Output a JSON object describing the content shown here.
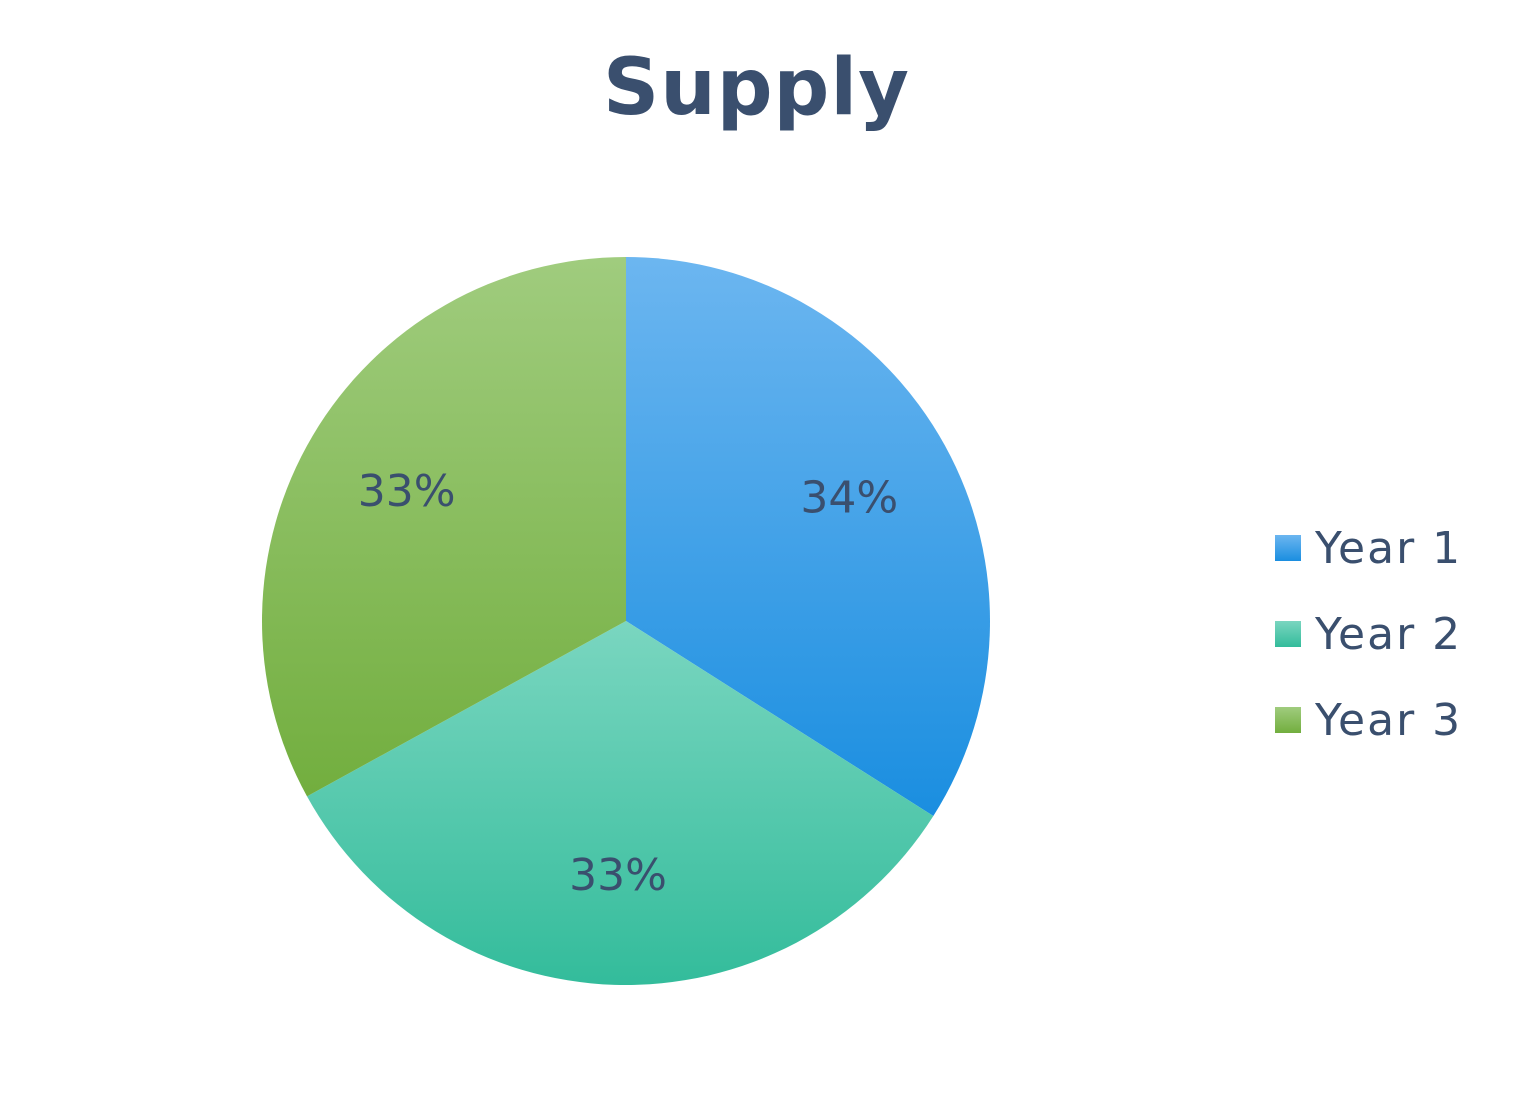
{
  "chart_data": {
    "type": "pie",
    "title": "Supply",
    "categories": [
      "Year 1",
      "Year 2",
      "Year 3"
    ],
    "values": [
      34,
      33,
      33
    ],
    "data_labels": [
      "34%",
      "33%",
      "33%"
    ],
    "legend_placement": "right",
    "colors": {
      "Year 1": {
        "top": "#6cb6f0",
        "bottom": "#1a8ee0"
      },
      "Year 2": {
        "top": "#7ad6c0",
        "bottom": "#33bc9b"
      },
      "Year 3": {
        "top": "#a0cc7e",
        "bottom": "#72ae3e"
      },
      "text": "#3a4f6e"
    }
  }
}
